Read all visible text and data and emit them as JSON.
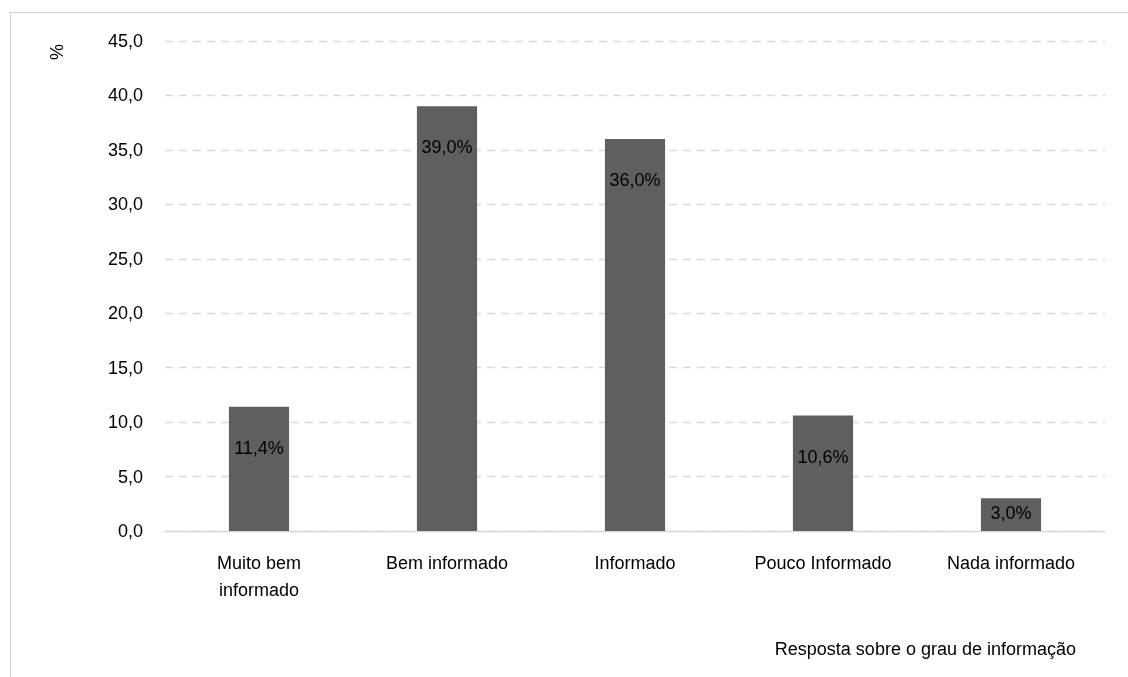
{
  "chart_data": {
    "type": "bar",
    "xlabel": "Resposta sobre o grau de informação",
    "ylabel": "%",
    "categories": [
      "Muito bem\ninformado",
      "Bem informado",
      "Informado",
      "Pouco Informado",
      "Nada informado"
    ],
    "values": [
      11.4,
      39.0,
      36.0,
      10.6,
      3.0
    ],
    "color": "#5f5f5f",
    "value_labels": [
      "11,4%",
      "39,0%",
      "36,0%",
      "10,6%",
      "3,0%"
    ],
    "ylim": [
      0,
      45
    ],
    "yticks": [
      {
        "value": 0,
        "label": "0,0"
      },
      {
        "value": 5,
        "label": "5,0"
      },
      {
        "value": 10,
        "label": "10,0"
      },
      {
        "value": 15,
        "label": "15,0"
      },
      {
        "value": 20,
        "label": "20,0"
      },
      {
        "value": 25,
        "label": "25,0"
      },
      {
        "value": 30,
        "label": "30,0"
      },
      {
        "value": 35,
        "label": "35,0"
      },
      {
        "value": 40,
        "label": "40,0"
      },
      {
        "value": 45,
        "label": "45,0"
      }
    ],
    "grid": "y"
  }
}
